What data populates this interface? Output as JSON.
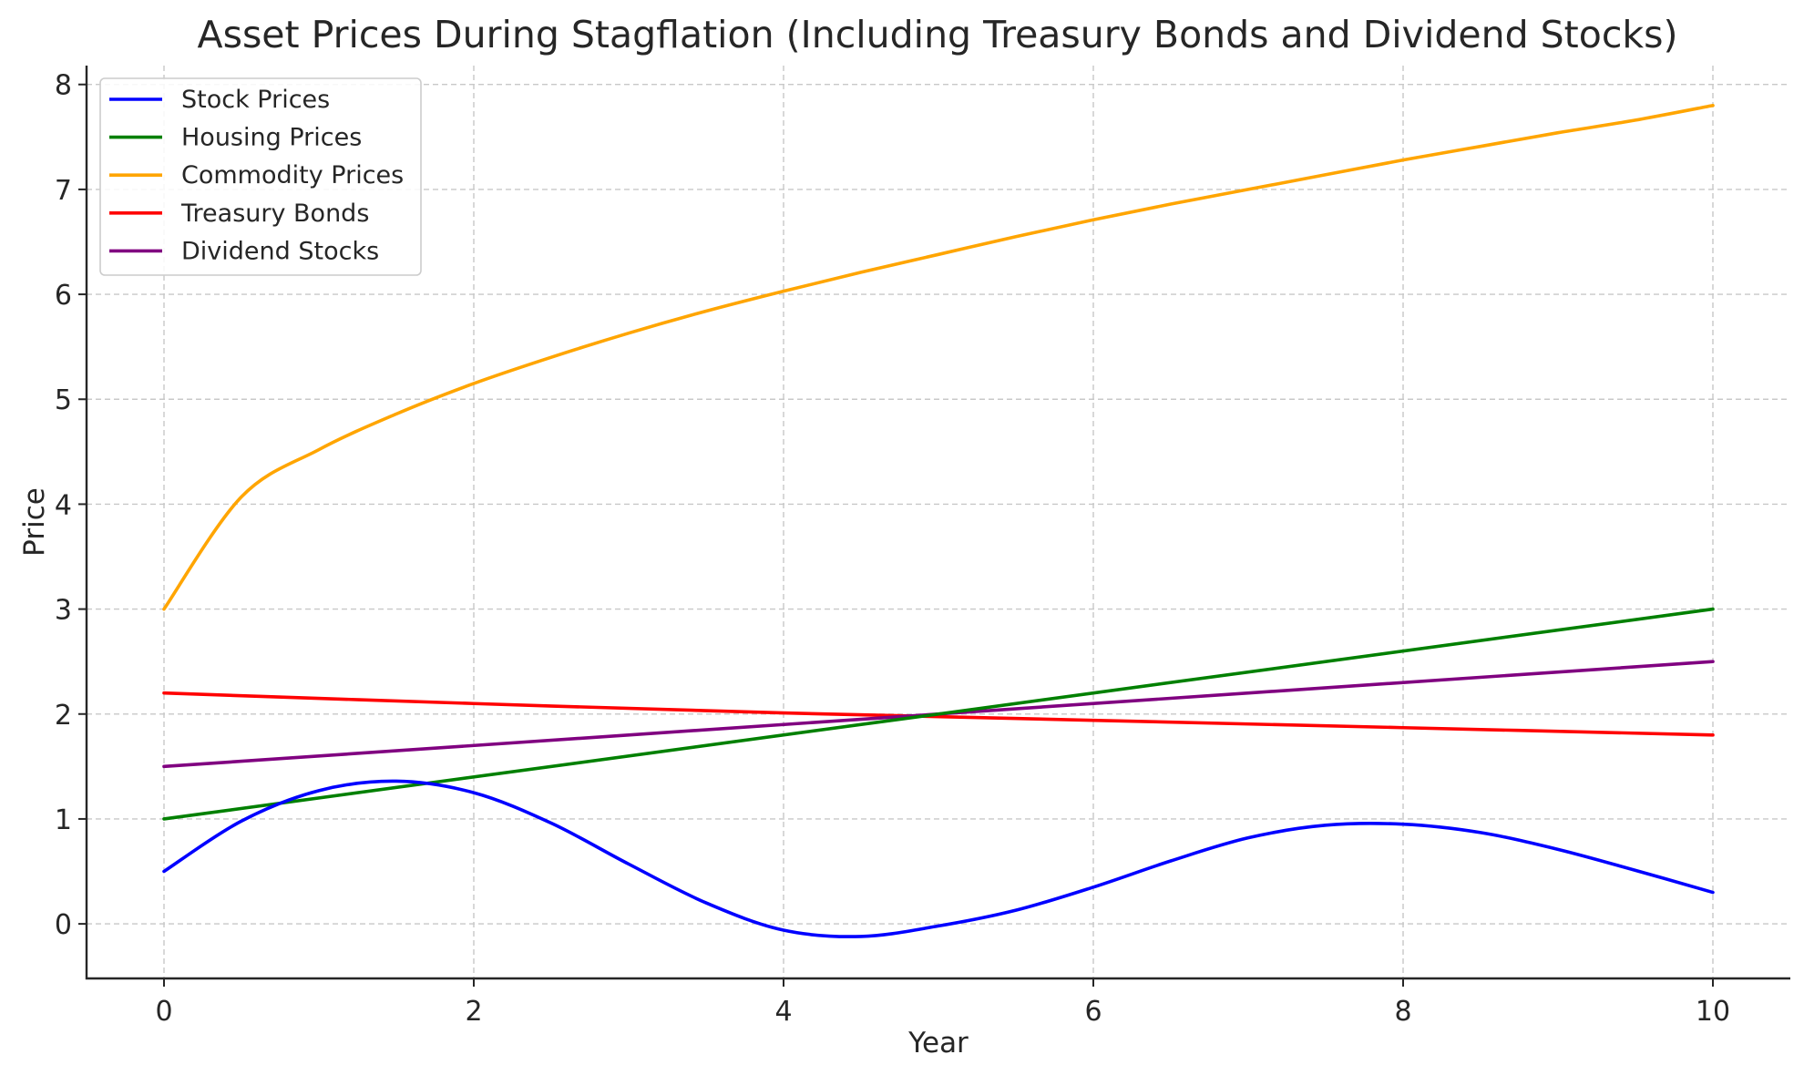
{
  "chart_data": {
    "type": "line",
    "title": "Asset Prices During Stagflation (Including Treasury Bonds and Dividend Stocks)",
    "xlabel": "Year",
    "ylabel": "Price",
    "xlim": [
      -0.5,
      10.5
    ],
    "ylim": [
      -0.52,
      8.18
    ],
    "xticks": [
      0,
      2,
      4,
      6,
      8,
      10
    ],
    "yticks": [
      0,
      1,
      2,
      3,
      4,
      5,
      6,
      7,
      8
    ],
    "grid": true,
    "legend_position": "upper-left",
    "series": [
      {
        "name": "Stock Prices",
        "color": "#0000ff",
        "x": [
          0,
          0.5,
          1,
          1.5,
          2,
          2.5,
          3,
          3.5,
          4,
          4.5,
          5,
          5.5,
          6,
          6.5,
          7,
          7.5,
          8,
          8.5,
          9,
          9.5,
          10
        ],
        "y": [
          0.5,
          0.98,
          1.27,
          1.36,
          1.25,
          0.96,
          0.57,
          0.2,
          -0.06,
          -0.12,
          -0.02,
          0.13,
          0.35,
          0.6,
          0.82,
          0.94,
          0.95,
          0.87,
          0.71,
          0.51,
          0.3
        ]
      },
      {
        "name": "Housing Prices",
        "color": "#008000",
        "x": [
          0,
          10
        ],
        "y": [
          1.0,
          3.0
        ]
      },
      {
        "name": "Commodity Prices",
        "color": "#ffa500",
        "x": [
          0,
          0.5,
          1,
          1.5,
          2,
          2.5,
          3,
          3.5,
          4,
          4.5,
          5,
          5.5,
          6,
          6.5,
          7,
          7.5,
          8,
          8.5,
          9,
          9.5,
          10
        ],
        "y": [
          3.0,
          4.07,
          4.52,
          4.86,
          5.15,
          5.4,
          5.63,
          5.84,
          6.03,
          6.21,
          6.38,
          6.55,
          6.71,
          6.86,
          7.0,
          7.14,
          7.28,
          7.41,
          7.54,
          7.66,
          7.8
        ]
      },
      {
        "name": "Treasury Bonds",
        "color": "#ff0000",
        "x": [
          0,
          2,
          4,
          6,
          8,
          10
        ],
        "y": [
          2.2,
          2.1,
          2.01,
          1.94,
          1.87,
          1.8
        ]
      },
      {
        "name": "Dividend Stocks",
        "color": "#800080",
        "x": [
          0,
          10
        ],
        "y": [
          1.5,
          2.5
        ]
      }
    ]
  }
}
